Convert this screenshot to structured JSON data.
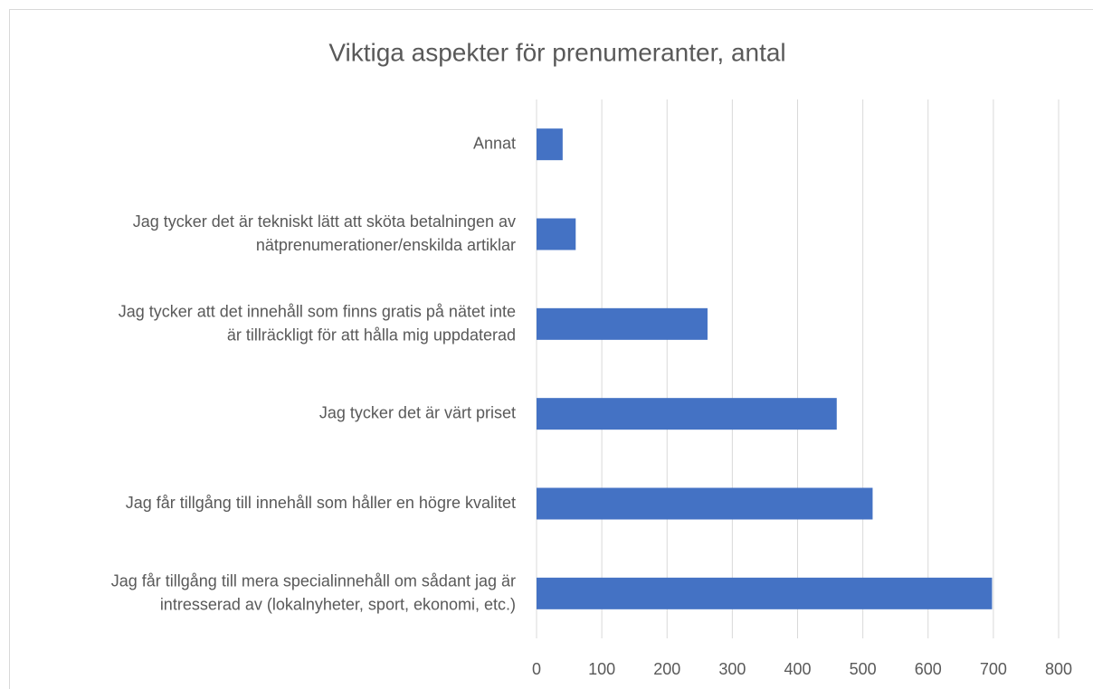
{
  "chart_data": {
    "type": "barh",
    "title": "Viktiga aspekter för prenumeranter, antal",
    "categories": [
      "Annat",
      "Jag tycker det är tekniskt lätt att sköta betalningen av\nnätprenumerationer/enskilda artiklar",
      "Jag tycker att det innehåll som finns gratis på nätet inte\när tillräckligt för att hålla mig uppdaterad",
      "Jag tycker det är värt priset",
      "Jag får tillgång till innehåll som håller en högre kvalitet",
      "Jag får tillgång till mera specialinnehåll om sådant jag är\nintresserad av (lokalnyheter, sport, ekonomi, etc.)"
    ],
    "values": [
      40,
      60,
      262,
      460,
      515,
      698
    ],
    "color": "#4472c4",
    "xlim": [
      0,
      800
    ],
    "xticks": [
      0,
      100,
      200,
      300,
      400,
      500,
      600,
      700,
      800
    ],
    "grid": true
  }
}
